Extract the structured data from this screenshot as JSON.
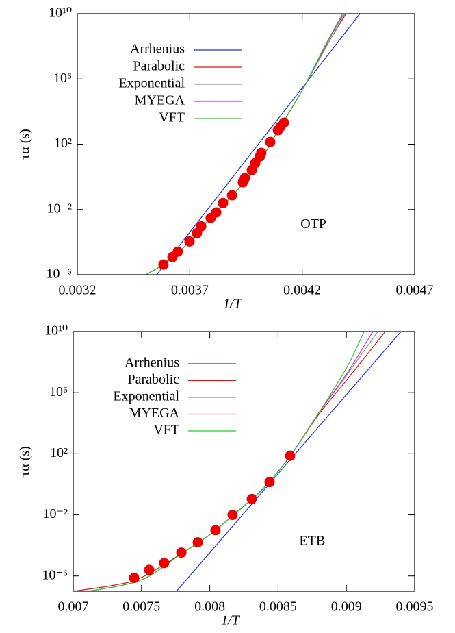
{
  "chart_data": [
    {
      "type": "line",
      "annotation": "OTP",
      "x_label": "1/T",
      "y_label": "τα (s)",
      "ylog": true,
      "legend": "upper left",
      "xlim": [
        0.0032,
        0.0047
      ],
      "xticks": [
        0.0032,
        0.0037,
        0.0042,
        0.0047
      ],
      "ylim": [
        1e-06,
        10000000000.0
      ],
      "yticks": [
        {
          "value": 1e-06,
          "label": "10⁻⁶"
        },
        {
          "value": 0.01,
          "label": "10⁻²"
        },
        {
          "value": 100,
          "label": "10²"
        },
        {
          "value": 1000000.0,
          "label": "10⁶"
        },
        {
          "value": 10000000000.0,
          "label": "10¹⁰"
        }
      ],
      "series": [
        {
          "name": "Arrhenius",
          "color": "#2233dd",
          "x": [
            0.003553,
            0.004457
          ],
          "values": [
            1e-06,
            10000000000.0
          ]
        },
        {
          "name": "Parabolic",
          "color": "#e01010",
          "x": [
            0.003504,
            0.0036,
            0.0037,
            0.0038,
            0.0039,
            0.004,
            0.0041,
            0.0042,
            0.0043,
            0.004395
          ],
          "values": [
            1e-06,
            6.3e-06,
            0.00011,
            0.004,
            0.1,
            5,
            1000,
            200000.0,
            70000000.0,
            10000000000.0
          ]
        },
        {
          "name": "Exponential",
          "color": "#909090",
          "x": [
            0.003504,
            0.0036,
            0.0037,
            0.0038,
            0.0039,
            0.004,
            0.0041,
            0.0042,
            0.0043,
            0.00439
          ],
          "values": [
            1e-06,
            6.3e-06,
            0.00011,
            0.004,
            0.1,
            5,
            1000,
            200000.0,
            63000000.0,
            10000000000.0
          ]
        },
        {
          "name": "MYEGA",
          "color": "#dd22dd",
          "x": [
            0.003504,
            0.0036,
            0.0037,
            0.0038,
            0.0039,
            0.004,
            0.0041,
            0.0042,
            0.0043,
            0.004385
          ],
          "values": [
            1e-06,
            6.3e-06,
            0.00011,
            0.004,
            0.1,
            5,
            1000,
            200000.0,
            90000000.0,
            10000000000.0
          ]
        },
        {
          "name": "VFT",
          "color": "#22cc22",
          "x": [
            0.003504,
            0.0036,
            0.0037,
            0.0038,
            0.0039,
            0.004,
            0.0041,
            0.0042,
            0.0043,
            0.00438
          ],
          "values": [
            1e-06,
            6.3e-06,
            0.00011,
            0.004,
            0.1,
            5,
            1000,
            200000.0,
            100000000.0,
            10000000000.0
          ]
        }
      ],
      "points": {
        "color": "#ee0000",
        "x": [
          0.003583,
          0.003623,
          0.003647,
          0.003699,
          0.003732,
          0.003751,
          0.003793,
          0.003818,
          0.003848,
          0.003888,
          0.003936,
          0.003945,
          0.003976,
          0.003991,
          0.004012,
          0.004018,
          0.004058,
          0.004092,
          0.004104,
          0.004119
        ],
        "values": [
          4.2e-06,
          1.2e-05,
          2.6e-05,
          0.00011,
          0.00035,
          0.00093,
          0.003,
          0.0066,
          0.025,
          0.074,
          0.46,
          0.83,
          2.6,
          6.9,
          18,
          30,
          138,
          720,
          1200,
          2100
        ]
      }
    },
    {
      "type": "line",
      "annotation": "ETB",
      "x_label": "1/T",
      "y_label": "τα (s)",
      "ylog": true,
      "legend": "upper left",
      "xlim": [
        0.007,
        0.0095
      ],
      "xticks": [
        0.007,
        0.0075,
        0.008,
        0.0085,
        0.009,
        0.0095
      ],
      "ylim": [
        1e-07,
        10000000000.0
      ],
      "yticks": [
        {
          "value": 1e-06,
          "label": "10⁻⁶"
        },
        {
          "value": 0.01,
          "label": "10⁻²"
        },
        {
          "value": 100,
          "label": "10²"
        },
        {
          "value": 1000000.0,
          "label": "10⁶"
        },
        {
          "value": 10000000000.0,
          "label": "10¹⁰"
        }
      ],
      "series": [
        {
          "name": "Arrhenius",
          "color": "#2233dd",
          "x": [
            0.007756,
            0.0094
          ],
          "values": [
            1e-07,
            10000000000.0
          ]
        },
        {
          "name": "Parabolic",
          "color": "#e01010",
          "x": [
            0.007,
            0.0073,
            0.0075,
            0.0078,
            0.008,
            0.0082,
            0.0084,
            0.0086,
            0.0088,
            0.009,
            0.009285
          ],
          "values": [
            1e-07,
            2.5e-07,
            7.9e-07,
            3.2e-05,
            0.0005,
            0.016,
            0.63,
            100,
            40000.0,
            6300000.0,
            10000000000.0
          ]
        },
        {
          "name": "Exponential",
          "color": "#909090",
          "x": [
            0.007115,
            0.0075,
            0.0078,
            0.008,
            0.0082,
            0.0084,
            0.0086,
            0.0088,
            0.009,
            0.00923
          ],
          "values": [
            1e-07,
            5.6e-07,
            3.2e-05,
            0.0005,
            0.016,
            0.63,
            100,
            50000.0,
            13000000.0,
            10000000000.0
          ]
        },
        {
          "name": "MYEGA",
          "color": "#dd22dd",
          "x": [
            0.007115,
            0.0075,
            0.0078,
            0.008,
            0.0082,
            0.0084,
            0.0086,
            0.0088,
            0.009,
            0.009194
          ],
          "values": [
            1e-07,
            5.6e-07,
            3.2e-05,
            0.0005,
            0.016,
            0.63,
            100,
            50000.0,
            16000000.0,
            10000000000.0
          ]
        },
        {
          "name": "VFT",
          "color": "#22cc22",
          "x": [
            0.007115,
            0.0075,
            0.0078,
            0.008,
            0.0082,
            0.0084,
            0.0086,
            0.0088,
            0.009,
            0.00913
          ],
          "values": [
            1e-07,
            5.6e-07,
            3.2e-05,
            0.0005,
            0.016,
            0.63,
            100,
            50000.0,
            40000000.0,
            10000000000.0
          ]
        }
      ],
      "points": {
        "color": "#ee0000",
        "x": [
          0.007446,
          0.007556,
          0.007666,
          0.007792,
          0.007912,
          0.008042,
          0.008167,
          0.008308,
          0.008438,
          0.008588
        ],
        "values": [
          7.4e-07,
          2.5e-06,
          7e-06,
          3.4e-05,
          0.00016,
          0.001,
          0.01,
          0.11,
          1.4,
          74
        ]
      }
    }
  ]
}
